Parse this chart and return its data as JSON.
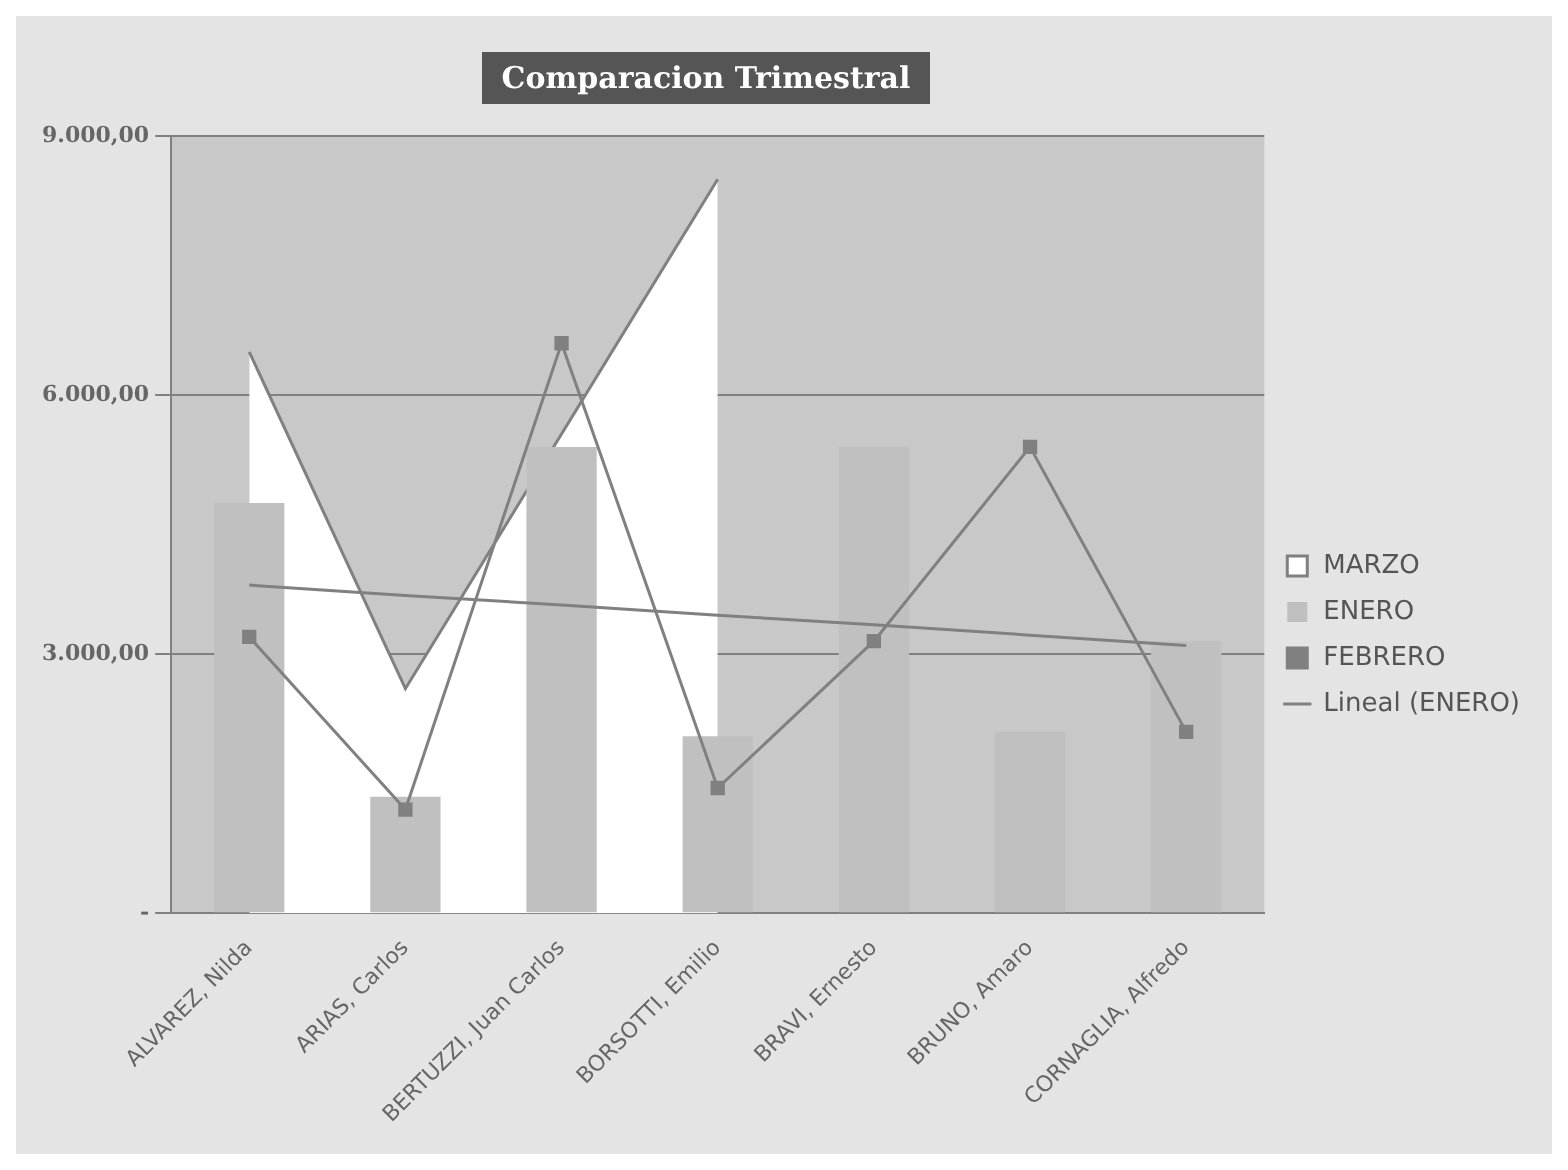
{
  "chart_data": {
    "type": "bar",
    "title": "Comparacion Trimestral",
    "categories": [
      "ALVAREZ, Nilda",
      "ARIAS, Carlos",
      "BERTUZZI, Juan Carlos",
      "BORSOTTI, Emilio",
      "BRAVI, Ernesto",
      "BRUNO, Amaro",
      "CORNAGLIA, Alfredo"
    ],
    "series": [
      {
        "name": "MARZO",
        "type": "area",
        "color": "#ffffff",
        "values": [
          6500,
          2600,
          null,
          8500,
          null,
          null,
          null
        ]
      },
      {
        "name": "ENERO",
        "color": "#c0c0c0",
        "values": [
          4750,
          1350,
          5400,
          2050,
          5400,
          2100,
          3150
        ]
      },
      {
        "name": "FEBRERO",
        "type": "line",
        "color": "#808080",
        "marker": "square",
        "values": [
          3200,
          1200,
          6600,
          1450,
          3150,
          5400,
          2100
        ]
      },
      {
        "name": "Lineal (ENERO)",
        "type": "line",
        "color": "#808080",
        "marker": "none",
        "values": [
          3800,
          3680,
          3570,
          3450,
          3340,
          3220,
          3100
        ]
      }
    ],
    "ylim": [
      0,
      9000
    ],
    "yticks": [
      {
        "value": 0,
        "label": "-"
      },
      {
        "value": 3000,
        "label": "3.000,00"
      },
      {
        "value": 6000,
        "label": "6.000,00"
      },
      {
        "value": 9000,
        "label": "9.000,00"
      }
    ],
    "grid": "y",
    "legend": "right"
  }
}
